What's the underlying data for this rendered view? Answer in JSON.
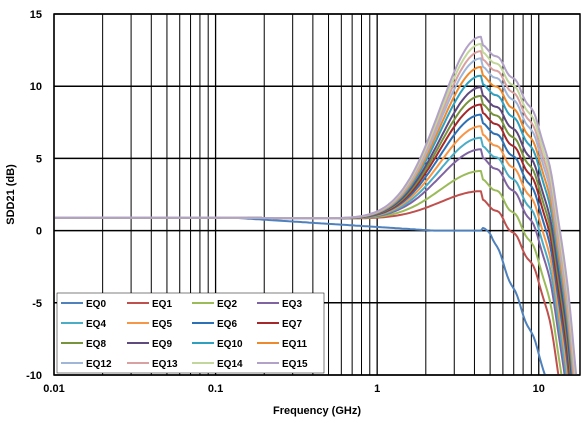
{
  "chart_data": {
    "type": "line",
    "title": "",
    "xlabel": "Frequency (GHz)",
    "ylabel": "SDD21 (dB)",
    "x_scale": "log",
    "xlim": [
      0.01,
      18
    ],
    "ylim": [
      -10,
      15
    ],
    "x_ticks": [
      0.01,
      0.1,
      1,
      10
    ],
    "x_tick_labels": [
      "0.01",
      "0.1",
      "1",
      "10"
    ],
    "y_ticks": [
      -10,
      -5,
      0,
      5,
      10,
      15
    ],
    "y_tick_labels": [
      "-10",
      "-5",
      "0",
      "5",
      "10",
      "15"
    ],
    "grid": true,
    "legend_position": "bottom-left inside plot",
    "series": [
      {
        "name": "EQ0",
        "color": "#4f81bd",
        "peak_db": 0.0
      },
      {
        "name": "EQ1",
        "color": "#c0504d",
        "peak_db": 2.0
      },
      {
        "name": "EQ2",
        "color": "#9bbb59",
        "peak_db": 3.4
      },
      {
        "name": "EQ3",
        "color": "#8064a2",
        "peak_db": 4.9
      },
      {
        "name": "EQ4",
        "color": "#4bacc6",
        "peak_db": 5.7
      },
      {
        "name": "EQ5",
        "color": "#f79646",
        "peak_db": 6.5
      },
      {
        "name": "EQ6",
        "color": "#2c70b5",
        "peak_db": 7.3
      },
      {
        "name": "EQ7",
        "color": "#a5282b",
        "peak_db": 8.0
      },
      {
        "name": "EQ8",
        "color": "#77933c",
        "peak_db": 8.6
      },
      {
        "name": "EQ9",
        "color": "#5f4a80",
        "peak_db": 9.2
      },
      {
        "name": "EQ10",
        "color": "#2fa0c0",
        "peak_db": 10.0
      },
      {
        "name": "EQ11",
        "color": "#ee8a2e",
        "peak_db": 10.6
      },
      {
        "name": "EQ12",
        "color": "#a0b6d9",
        "peak_db": 11.2
      },
      {
        "name": "EQ13",
        "color": "#d9a2a1",
        "peak_db": 11.7
      },
      {
        "name": "EQ14",
        "color": "#c3d69b",
        "peak_db": 12.2
      },
      {
        "name": "EQ15",
        "color": "#b3a2c7",
        "peak_db": 12.7
      }
    ]
  }
}
